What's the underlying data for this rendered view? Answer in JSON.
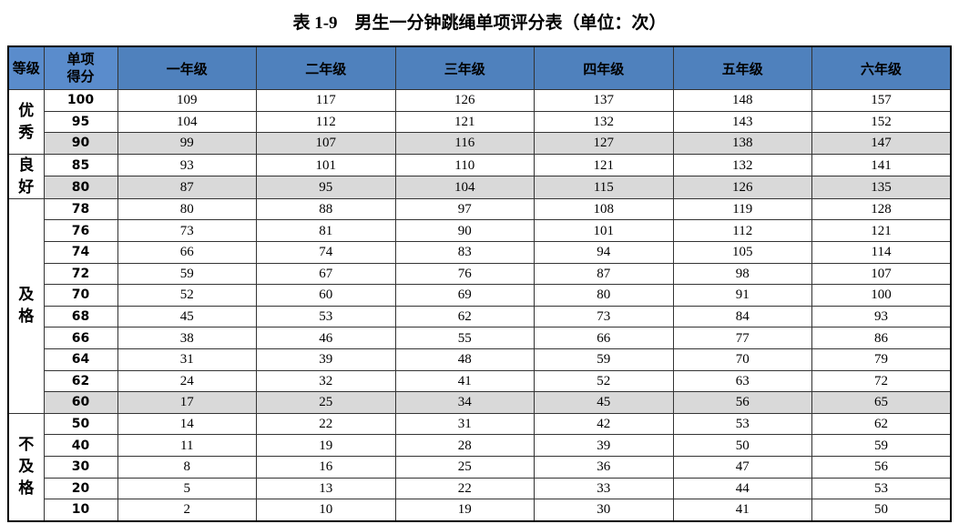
{
  "title": "表 1-9　男生一分钟跳绳单项评分表（单位：次）",
  "table": {
    "header": [
      "等级",
      "单项得分",
      "一年级",
      "二年级",
      "三年级",
      "四年级",
      "五年级",
      "六年级"
    ],
    "groups": [
      {
        "grade": "优秀",
        "rows": [
          {
            "score": 100,
            "values": [
              109,
              117,
              126,
              137,
              148,
              157
            ]
          },
          {
            "score": 95,
            "values": [
              104,
              112,
              121,
              132,
              143,
              152
            ]
          },
          {
            "score": 90,
            "values": [
              99,
              107,
              116,
              127,
              138,
              147
            ],
            "shaded": true
          }
        ]
      },
      {
        "grade": "良好",
        "rows": [
          {
            "score": 85,
            "values": [
              93,
              101,
              110,
              121,
              132,
              141
            ]
          },
          {
            "score": 80,
            "values": [
              87,
              95,
              104,
              115,
              126,
              135
            ],
            "shaded": true
          }
        ]
      },
      {
        "grade": "及格",
        "rows": [
          {
            "score": 78,
            "values": [
              80,
              88,
              97,
              108,
              119,
              128
            ]
          },
          {
            "score": 76,
            "values": [
              73,
              81,
              90,
              101,
              112,
              121
            ]
          },
          {
            "score": 74,
            "values": [
              66,
              74,
              83,
              94,
              105,
              114
            ]
          },
          {
            "score": 72,
            "values": [
              59,
              67,
              76,
              87,
              98,
              107
            ]
          },
          {
            "score": 70,
            "values": [
              52,
              60,
              69,
              80,
              91,
              100
            ]
          },
          {
            "score": 68,
            "values": [
              45,
              53,
              62,
              73,
              84,
              93
            ]
          },
          {
            "score": 66,
            "values": [
              38,
              46,
              55,
              66,
              77,
              86
            ]
          },
          {
            "score": 64,
            "values": [
              31,
              39,
              48,
              59,
              70,
              79
            ]
          },
          {
            "score": 62,
            "values": [
              24,
              32,
              41,
              52,
              63,
              72
            ]
          },
          {
            "score": 60,
            "values": [
              17,
              25,
              34,
              45,
              56,
              65
            ],
            "shaded": true
          }
        ]
      },
      {
        "grade": "不及格",
        "rows": [
          {
            "score": 50,
            "values": [
              14,
              22,
              31,
              42,
              53,
              62
            ]
          },
          {
            "score": 40,
            "values": [
              11,
              19,
              28,
              39,
              50,
              59
            ]
          },
          {
            "score": 30,
            "values": [
              8,
              16,
              25,
              36,
              47,
              56
            ]
          },
          {
            "score": 20,
            "values": [
              5,
              13,
              22,
              33,
              44,
              53
            ]
          },
          {
            "score": 10,
            "values": [
              2,
              10,
              19,
              30,
              41,
              50
            ]
          }
        ]
      }
    ]
  }
}
